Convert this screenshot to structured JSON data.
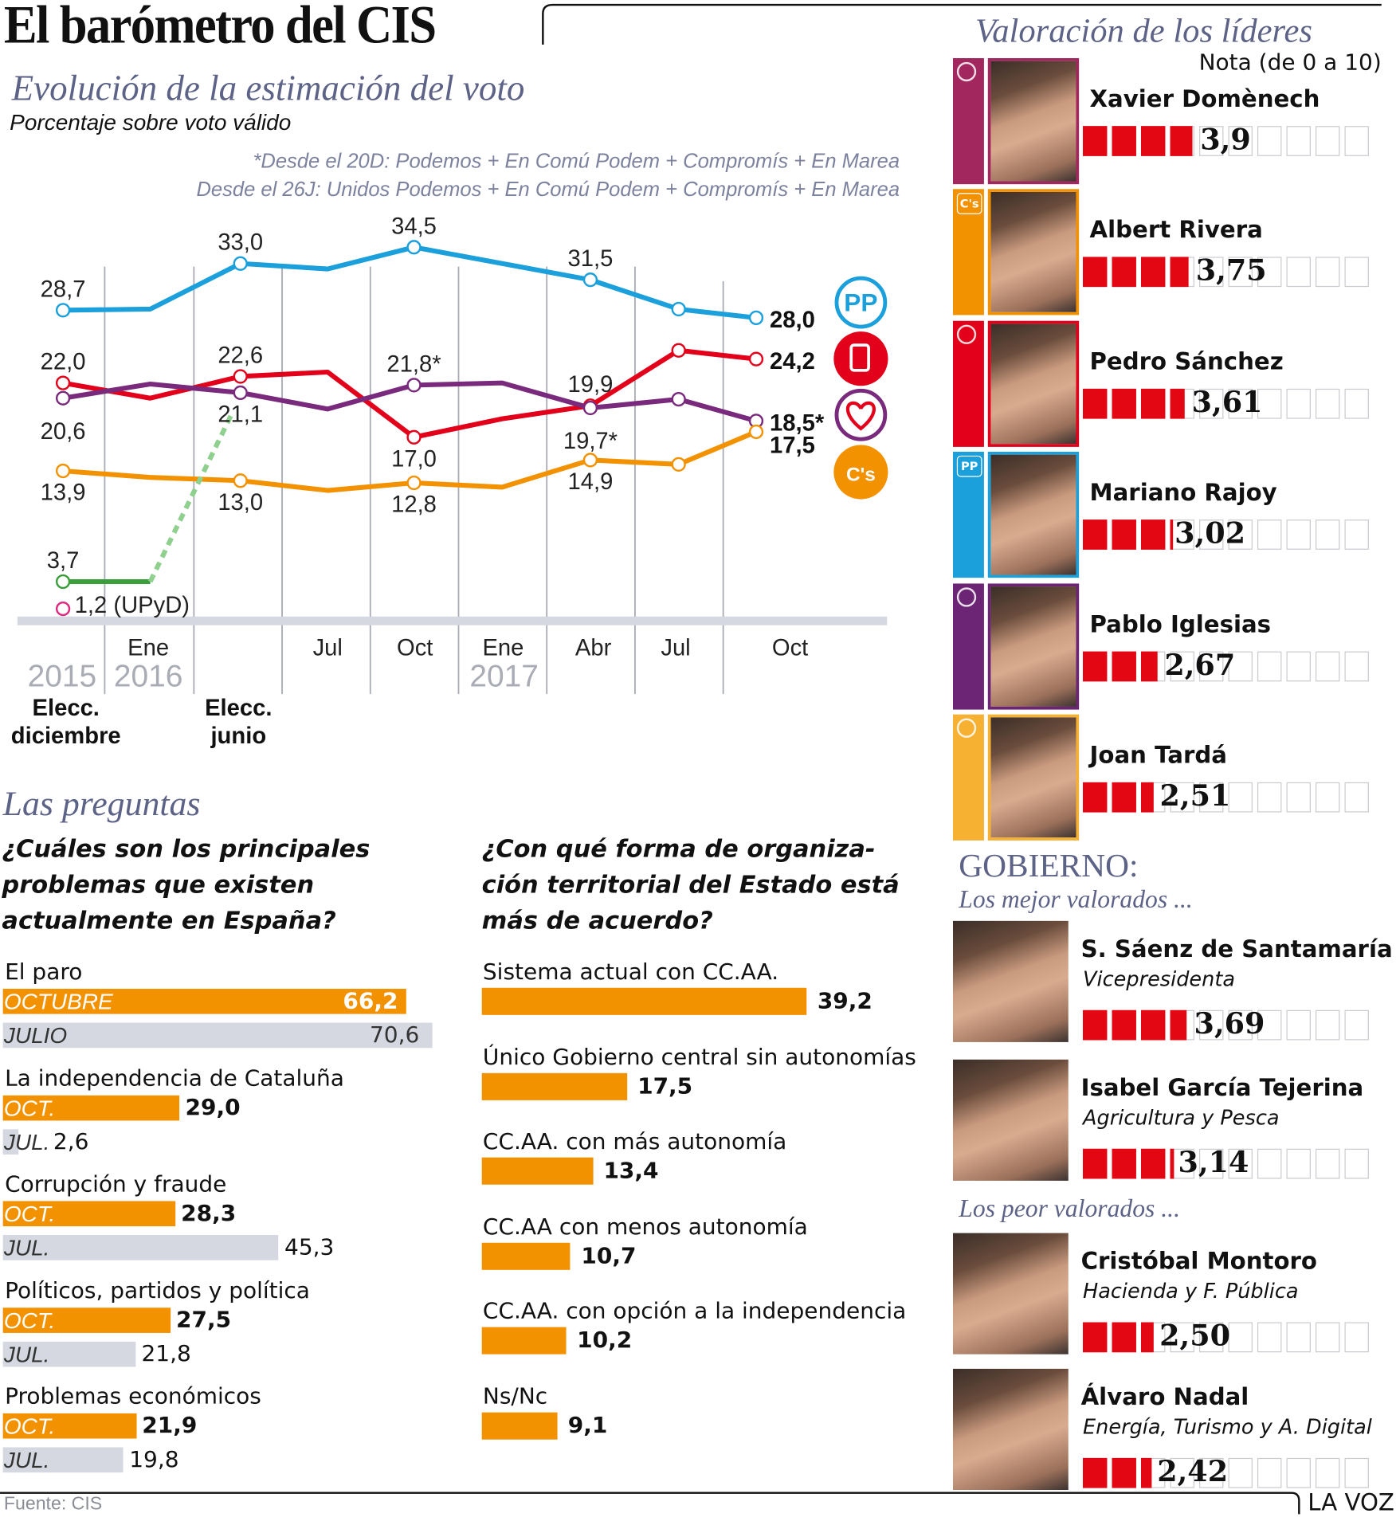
{
  "header": {
    "title": "El barómetro del CIS",
    "subtitle": "Evolución de la estimación del voto",
    "unit_note": "Porcentaje sobre voto válido",
    "footnote_1": "*Desde el 20D: Podemos + En Comú Podem + Compromís + En Marea",
    "footnote_2": "Desde el 26J: Unidos Podemos + En Comú Podem + Compromís + En Marea"
  },
  "chart_data": [
    {
      "type": "line",
      "x": [
        "2015-12",
        "2016-01",
        "2016-06",
        "2016-07",
        "2016-10",
        "2017-01",
        "2017-04",
        "2017-07",
        "2017-10"
      ],
      "x_tick_labels": [
        "Ene",
        "Jul",
        "Oct",
        "Ene",
        "Abr",
        "Jul",
        "Oct"
      ],
      "year_labels": [
        "2015",
        "2016",
        "2017"
      ],
      "event_labels": [
        "Elecc. diciembre",
        "Elecc. junio"
      ],
      "ylim": [
        0,
        36
      ],
      "grid": "vertical",
      "legend": "right (party logos)",
      "series": [
        {
          "logo": "PP",
          "icon": "pp-logo-icon",
          "color": "#1ba0dc",
          "values": [
            28.7,
            28.8,
            33.0,
            32.5,
            34.5,
            33.0,
            31.5,
            28.8,
            28.0
          ]
        },
        {
          "logo": "",
          "icon": "psoe-logo-icon",
          "color": "#e2001a",
          "values": [
            22.0,
            20.6,
            22.6,
            23.0,
            17.0,
            18.7,
            19.9,
            25.0,
            24.2
          ]
        },
        {
          "logo": "",
          "icon": "podemos-logo-icon",
          "color": "#7a2a7c",
          "values": [
            20.6,
            21.9,
            21.1,
            19.6,
            21.8,
            22.0,
            19.7,
            20.5,
            18.5
          ]
        },
        {
          "logo": "C's",
          "icon": "ciudadanos-logo-icon",
          "color": "#f39200",
          "values": [
            13.9,
            13.3,
            13.0,
            12.1,
            12.8,
            12.4,
            14.9,
            14.5,
            17.5
          ]
        },
        {
          "logo": "",
          "icon": "",
          "color": "#3a9e3a",
          "values": [
            3.7,
            3.7,
            21.1,
            null,
            null,
            null,
            null,
            null,
            null
          ],
          "dashed_from": 1
        },
        {
          "name": "UPyD",
          "logo": "",
          "icon": "",
          "color": "#e0297f",
          "values": [
            1.2,
            null,
            null,
            null,
            null,
            null,
            null,
            null,
            null
          ]
        }
      ],
      "data_labels": [
        {
          "text": "28,7",
          "s": 0,
          "p": 0,
          "pos": "above"
        },
        {
          "text": "33,0",
          "s": 0,
          "p": 2,
          "pos": "above"
        },
        {
          "text": "34,5",
          "s": 0,
          "p": 4,
          "pos": "above"
        },
        {
          "text": "31,5",
          "s": 0,
          "p": 6,
          "pos": "above"
        },
        {
          "text": "28,0",
          "s": 0,
          "p": 8,
          "pos": "end"
        },
        {
          "text": "22,0",
          "s": 1,
          "p": 0,
          "pos": "above"
        },
        {
          "text": "22,6",
          "s": 1,
          "p": 2,
          "pos": "above"
        },
        {
          "text": "17,0",
          "s": 1,
          "p": 4,
          "pos": "below"
        },
        {
          "text": "19,9",
          "s": 1,
          "p": 6,
          "pos": "above"
        },
        {
          "text": "24,2",
          "s": 1,
          "p": 8,
          "pos": "end"
        },
        {
          "text": "20,6",
          "s": 2,
          "p": 0,
          "pos": "below2"
        },
        {
          "text": "21,1",
          "s": 2,
          "p": 2,
          "pos": "below"
        },
        {
          "text": "21,8*",
          "s": 2,
          "p": 4,
          "pos": "above"
        },
        {
          "text": "19,7*",
          "s": 2,
          "p": 6,
          "pos": "below2"
        },
        {
          "text": "18,5*",
          "s": 2,
          "p": 8,
          "pos": "end"
        },
        {
          "text": "13,9",
          "s": 3,
          "p": 0,
          "pos": "below"
        },
        {
          "text": "13,0",
          "s": 3,
          "p": 2,
          "pos": "below"
        },
        {
          "text": "12,8",
          "s": 3,
          "p": 4,
          "pos": "below"
        },
        {
          "text": "14,9",
          "s": 3,
          "p": 6,
          "pos": "below"
        },
        {
          "text": "17,5",
          "s": 3,
          "p": 8,
          "pos": "endlow"
        },
        {
          "text": "3,7",
          "s": 4,
          "p": 0,
          "pos": "above"
        },
        {
          "text": "1,2 (UPyD)",
          "s": 5,
          "p": 0,
          "pos": "right"
        }
      ]
    },
    {
      "type": "bar",
      "title": "¿Cuáles son los principales problemas que existen actualmente en España?",
      "orientation": "horizontal",
      "items": [
        {
          "label": "El paro",
          "oct_label": "OCTUBRE",
          "oct": "66,2",
          "jul_label": "JULIO",
          "jul": "70,6"
        },
        {
          "label": "La independencia de Cataluña",
          "oct_label": "OCT.",
          "oct": "29,0",
          "jul_label": "JUL.",
          "jul": "2,6"
        },
        {
          "label": "Corrupción y fraude",
          "oct_label": "OCT.",
          "oct": "28,3",
          "jul_label": "JUL.",
          "jul": "45,3"
        },
        {
          "label": "Políticos, partidos y política",
          "oct_label": "OCT.",
          "oct": "27,5",
          "jul_label": "JUL.",
          "jul": "21,8"
        },
        {
          "label": "Problemas económicos",
          "oct_label": "OCT.",
          "oct": "21,9",
          "jul_label": "JUL.",
          "jul": "19,8"
        }
      ],
      "colors": {
        "oct": "#f39200",
        "jul": "#d5d8e0"
      }
    },
    {
      "type": "bar",
      "title": "¿Con qué forma de organiza-ción territorial del Estado está más de acuerdo?",
      "orientation": "horizontal",
      "items": [
        {
          "label": "Sistema actual con CC.AA.",
          "value": "39,2"
        },
        {
          "label": "Único Gobierno central sin autonomías",
          "value": "17,5"
        },
        {
          "label": "CC.AA. con más autonomía",
          "value": "13,4"
        },
        {
          "label": "CC.AA con menos autonomía",
          "value": "10,7"
        },
        {
          "label": "CC.AA. con opción a la independencia",
          "value": "10,2"
        },
        {
          "label": "Ns/Nc",
          "value": "9,1"
        }
      ],
      "colors": {
        "bar": "#f39200"
      }
    }
  ],
  "questions": {
    "section_title": "Las preguntas",
    "q1_lines": [
      "¿Cuáles son los principales",
      "problemas que existen",
      "actualmente en España?"
    ],
    "q2_lines": [
      "¿Con qué forma de organiza-",
      "ción territorial del Estado está",
      "más de acuerdo?"
    ]
  },
  "leaders": {
    "title": "Valoración de los líderes",
    "scale_note": "Nota (de 0 a 10)",
    "scale_max": 10,
    "items": [
      {
        "name": "Xavier Domènech",
        "score": "3,9",
        "party_icon": "en-comu-podem-logo-icon",
        "icon_text": "EN COMÚ PODEM",
        "color": "#a3275f"
      },
      {
        "name": "Albert Rivera",
        "score": "3,75",
        "party_icon": "ciudadanos-logo-icon",
        "icon_text": "C's",
        "color": "#f39200"
      },
      {
        "name": "Pedro Sánchez",
        "score": "3,61",
        "party_icon": "psoe-logo-icon",
        "icon_text": "",
        "color": "#e2001a"
      },
      {
        "name": "Mariano Rajoy",
        "score": "3,02",
        "party_icon": "pp-logo-icon",
        "icon_text": "PP",
        "color": "#1ba0dc"
      },
      {
        "name": "Pablo Iglesias",
        "score": "2,67",
        "party_icon": "podemos-heart-logo-icon",
        "icon_text": "",
        "color": "#6b2574"
      },
      {
        "name": "Joan Tardá",
        "score": "2,51",
        "party_icon": "erc-logo-icon",
        "icon_text": "",
        "color": "#f6b133"
      }
    ]
  },
  "government": {
    "title": "GOBIERNO:",
    "best_label": "Los mejor valorados ...",
    "worst_label": "Los peor valorados ...",
    "best": [
      {
        "name": "S. Sáenz de Santamaría",
        "role": "Vicepresidenta",
        "score": "3,69"
      },
      {
        "name": "Isabel García Tejerina",
        "role": "Agricultura y Pesca",
        "score": "3,14"
      }
    ],
    "worst": [
      {
        "name": "Cristóbal Montoro",
        "role": "Hacienda y F. Pública",
        "score": "2,50"
      },
      {
        "name": "Álvaro Nadal",
        "role": "Energía, Turismo y A. Digital",
        "score": "2,42"
      }
    ]
  },
  "footer": {
    "source": "Fuente: CIS",
    "brand": "LA VOZ"
  },
  "colors": {
    "accent_title": "#5d6387",
    "rating_fill": "#e30613",
    "axis_band": "#d5d8e0",
    "grid": "#a9acb5"
  }
}
